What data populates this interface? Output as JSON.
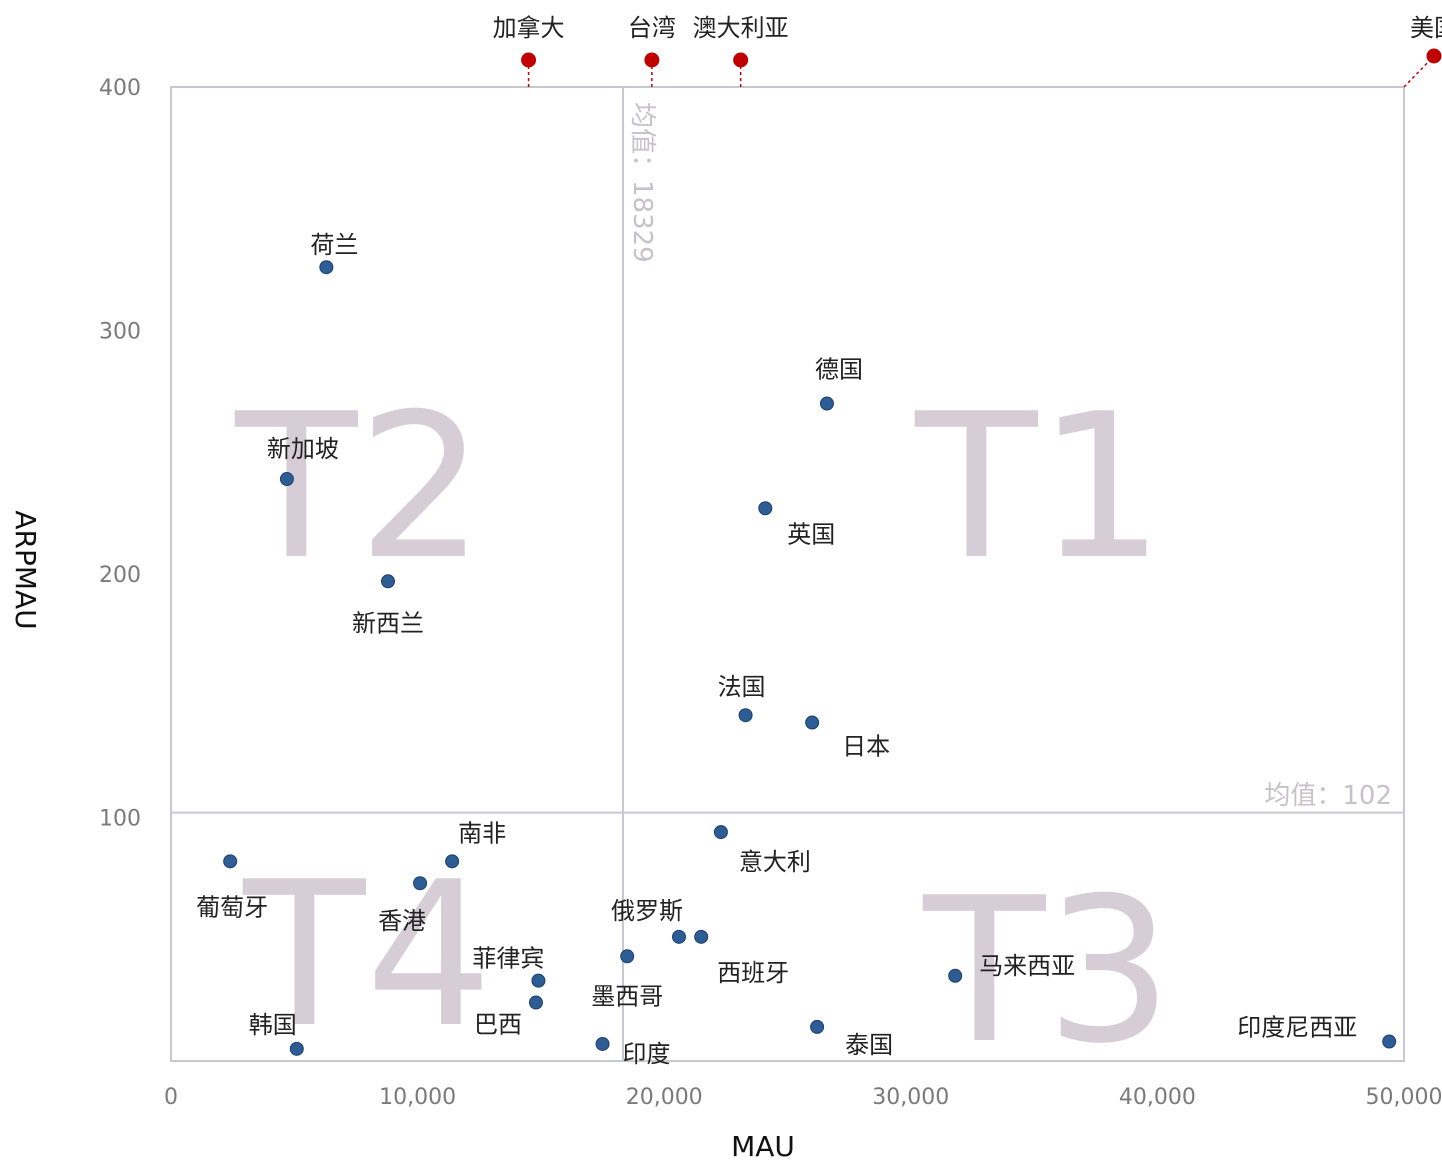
{
  "chart_data": {
    "type": "scatter",
    "xlabel": "MAU",
    "ylabel": "ARPMAU",
    "xlim": [
      0,
      50000
    ],
    "ylim": [
      0,
      400
    ],
    "x_ticks": [
      "0",
      "10,000",
      "20,000",
      "30,000",
      "40,000",
      "50,000"
    ],
    "y_ticks": [
      "100",
      "200",
      "300",
      "400"
    ],
    "x_tick_values": [
      0,
      10000,
      20000,
      30000,
      40000,
      50000
    ],
    "y_tick_values": [
      100,
      200,
      300,
      400
    ],
    "mean_x": 18329,
    "mean_y": 102,
    "mean_x_label": "均值：18329",
    "mean_y_label": "均值：102",
    "quadrant_labels": {
      "T1": "T1",
      "T2": "T2",
      "T3": "T3",
      "T4": "T4"
    },
    "point_color": "#2e5c94",
    "outlier_color": "#c00000",
    "points": [
      {
        "name": "荷兰",
        "x": 6300,
        "y": 326
      },
      {
        "name": "新加坡",
        "x": 4700,
        "y": 239
      },
      {
        "name": "新西兰",
        "x": 8800,
        "y": 197
      },
      {
        "name": "德国",
        "x": 26600,
        "y": 270
      },
      {
        "name": "英国",
        "x": 24100,
        "y": 227
      },
      {
        "name": "法国",
        "x": 23300,
        "y": 142
      },
      {
        "name": "日本",
        "x": 26000,
        "y": 139
      },
      {
        "name": "南非",
        "x": 11400,
        "y": 82
      },
      {
        "name": "葡萄牙",
        "x": 2400,
        "y": 82
      },
      {
        "name": "香港",
        "x": 10100,
        "y": 73
      },
      {
        "name": "意大利",
        "x": 22300,
        "y": 94
      },
      {
        "name": "俄罗斯",
        "x": 20600,
        "y": 51
      },
      {
        "name": "西班牙",
        "x": 21500,
        "y": 51
      },
      {
        "name": "菲律宾",
        "x": 14900,
        "y": 33
      },
      {
        "name": "墨西哥",
        "x": 18500,
        "y": 43
      },
      {
        "name": "巴西",
        "x": 14800,
        "y": 24
      },
      {
        "name": "马来西亚",
        "x": 31800,
        "y": 35
      },
      {
        "name": "韩国",
        "x": 5100,
        "y": 5
      },
      {
        "name": "印度",
        "x": 17500,
        "y": 7
      },
      {
        "name": "泰国",
        "x": 26200,
        "y": 14
      },
      {
        "name": "印度尼西亚",
        "x": 49400,
        "y": 8
      }
    ],
    "outliers": [
      {
        "name": "加拿大",
        "x": 14500
      },
      {
        "name": "台湾",
        "x": 19500
      },
      {
        "name": "澳大利亚",
        "x": 23100
      },
      {
        "name": "美国",
        "x": 50000
      }
    ]
  }
}
